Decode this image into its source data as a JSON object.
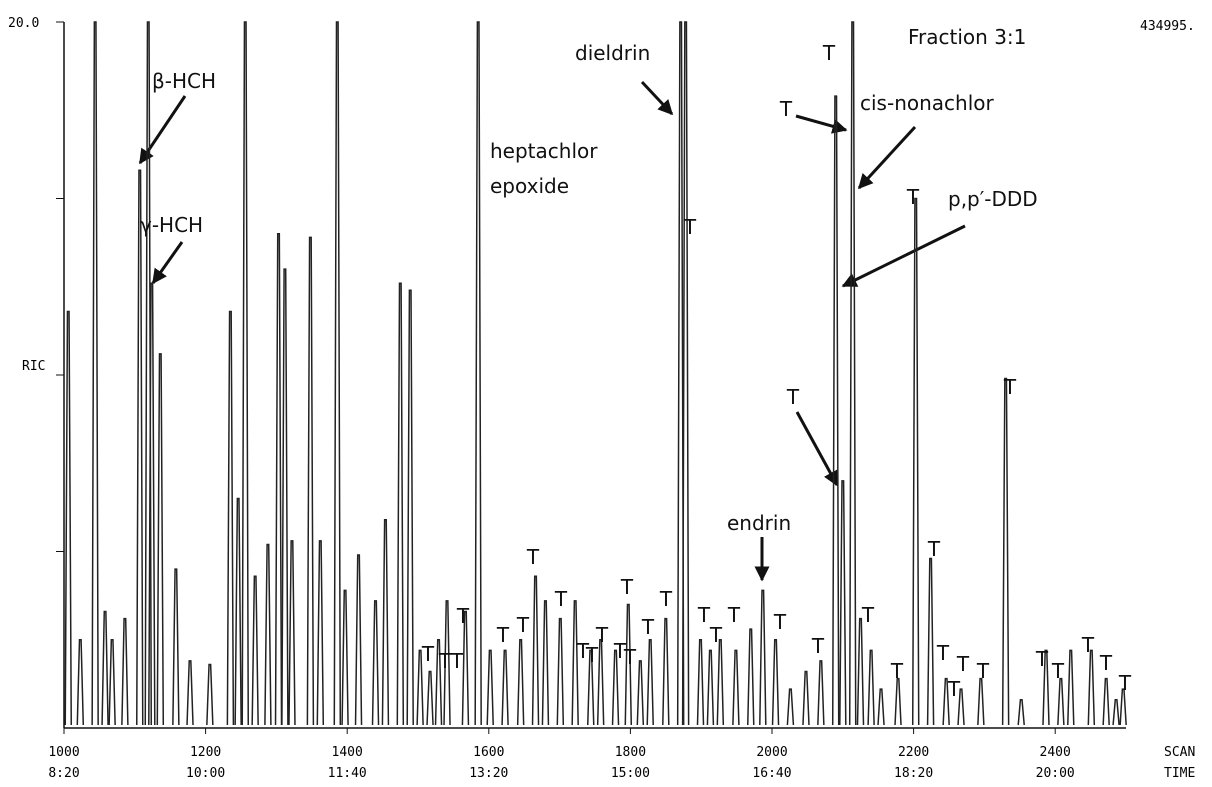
{
  "chart_data": {
    "type": "spike",
    "title": "Fraction 3:1",
    "scale_note": "434995.",
    "ylabel": "RIC",
    "xlabel": [
      "SCAN",
      "TIME"
    ],
    "xlim": [
      1000,
      2500
    ],
    "ylim": [
      0,
      20
    ],
    "xticks": [
      1000,
      1200,
      1400,
      1600,
      1800,
      2000,
      2200,
      2400
    ],
    "xtick_times": [
      "8:20",
      "10:00",
      "11:40",
      "13:20",
      "15:00",
      "16:40",
      "18:20",
      "20:00"
    ],
    "yticks": [
      {
        "value": 20,
        "label": "20.0"
      }
    ],
    "yminor_ticks": [
      5,
      10,
      15
    ],
    "color": "#222222",
    "x": [
      1006,
      1023,
      1044,
      1058,
      1068,
      1086,
      1107,
      1119,
      1124,
      1136,
      1158,
      1178,
      1206,
      1235,
      1246,
      1256,
      1270,
      1288,
      1303,
      1312,
      1322,
      1348,
      1362,
      1386,
      1397,
      1416,
      1440,
      1454,
      1475,
      1489,
      1503,
      1517,
      1529,
      1541,
      1567,
      1585,
      1602,
      1623,
      1645,
      1666,
      1680,
      1701,
      1722,
      1744,
      1758,
      1779,
      1797,
      1814,
      1828,
      1850,
      1871,
      1878,
      1899,
      1913,
      1927,
      1949,
      1970,
      1987,
      2005,
      2026,
      2048,
      2069,
      2090,
      2100,
      2114,
      2125,
      2140,
      2154,
      2178,
      2203,
      2224,
      2246,
      2267,
      2295,
      2330,
      2352,
      2387,
      2408,
      2422,
      2451,
      2472,
      2486,
      2496
    ],
    "values": [
      11.8,
      2.5,
      20,
      3.3,
      2.5,
      3.1,
      15.8,
      20,
      12.6,
      10.6,
      4.5,
      1.9,
      1.8,
      11.8,
      6.5,
      20,
      4.3,
      5.2,
      14.0,
      13.0,
      5.3,
      13.9,
      5.3,
      20,
      3.9,
      4.9,
      3.6,
      5.9,
      12.6,
      12.4,
      2.2,
      1.6,
      2.5,
      3.6,
      3.3,
      20,
      2.2,
      2.2,
      2.5,
      4.3,
      3.6,
      3.1,
      3.6,
      2.2,
      2.5,
      2.2,
      3.5,
      1.9,
      2.5,
      3.1,
      20,
      20,
      2.5,
      2.2,
      2.5,
      2.2,
      2.8,
      3.9,
      2.5,
      1.1,
      1.6,
      1.9,
      17.9,
      7.0,
      20,
      3.1,
      2.2,
      1.1,
      1.4,
      15.0,
      4.8,
      1.4,
      1.1,
      1.4,
      9.9,
      0.8,
      2.2,
      1.4,
      2.2,
      2.2,
      1.4,
      0.8,
      1.1
    ],
    "annotations": [
      "β-HCH",
      "γ-HCH",
      "heptachlor",
      "epoxide",
      "dieldrin",
      "cis-nonachlor",
      "p,p′-DDD",
      "endrin",
      "T",
      "T",
      "T",
      "T",
      "T",
      "T",
      "T",
      "T",
      "T",
      "T",
      "T",
      "T",
      "T",
      "T",
      "T",
      "T",
      "T",
      "T",
      "T",
      "T",
      "T",
      "T",
      "T",
      "T",
      "T",
      "T",
      "T",
      "T",
      "T",
      "T",
      "T",
      "T",
      "T",
      "T",
      "T",
      "T",
      "T",
      "T",
      "T"
    ]
  }
}
